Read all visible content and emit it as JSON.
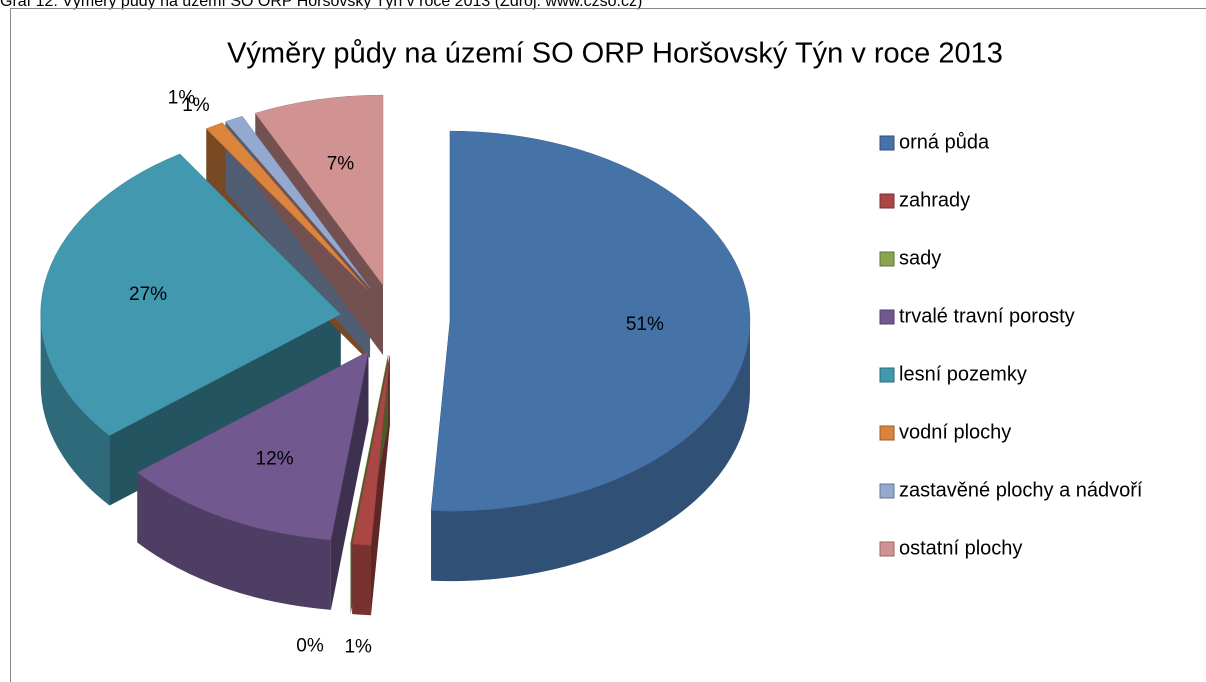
{
  "caption": "Graf 12: Výměry půdy na území SO ORP Horšovský Týn v roce 2013 (Zdroj: www.czso.cz)",
  "chart_data": {
    "type": "pie3d",
    "title": "Výměry půdy na území SO ORP Horšovský Týn v roce 2013",
    "categories": [
      "orná půda",
      "zahrady",
      "sady",
      "trvalé travní porosty",
      "lesní pozemky",
      "vodní plochy",
      "zastavěné plochy a nádvoří",
      "ostatní plochy"
    ],
    "values": [
      51,
      1,
      0,
      12,
      27,
      1,
      1,
      7
    ],
    "value_labels": [
      "51%",
      "1%",
      "0%",
      "12%",
      "27%",
      "1%",
      "1%",
      "7%"
    ],
    "colors": [
      "#4572a7",
      "#aa4643",
      "#89a54e",
      "#71588f",
      "#4198af",
      "#db843d",
      "#93a9cf",
      "#d19392"
    ],
    "legend": "right"
  }
}
